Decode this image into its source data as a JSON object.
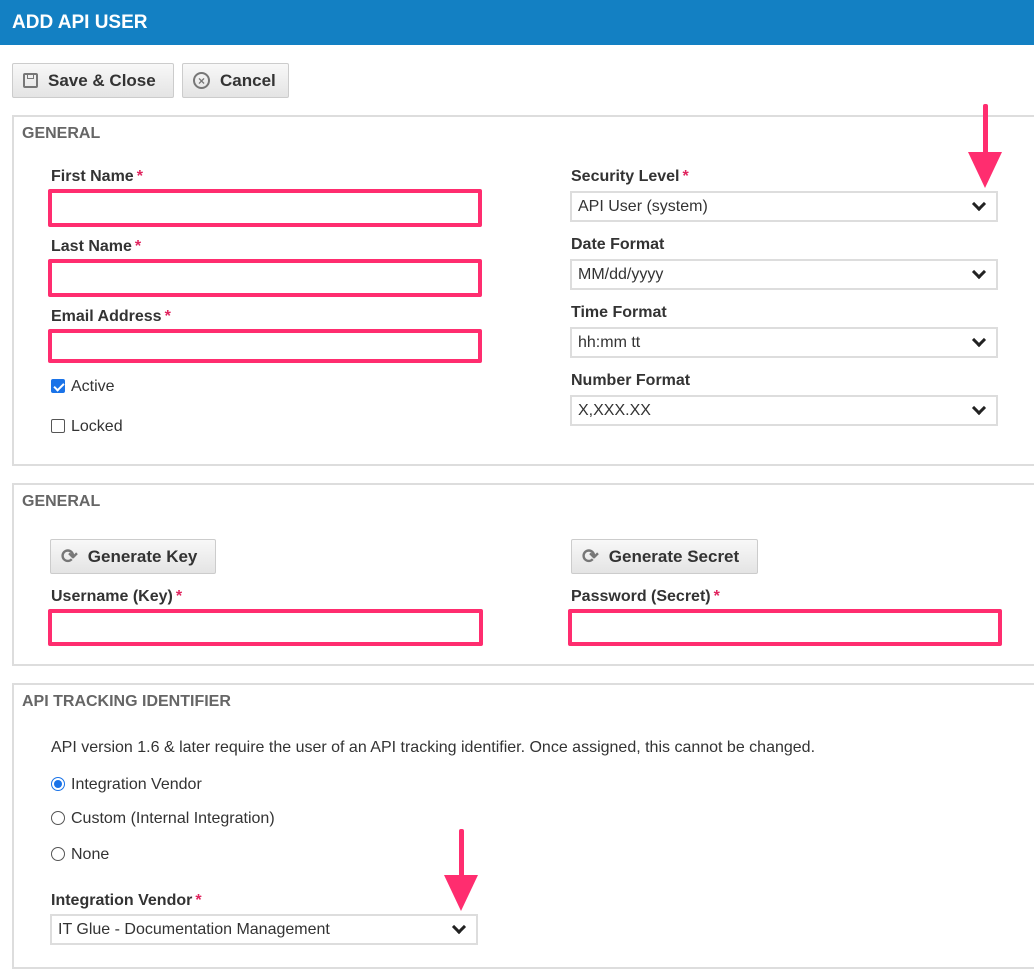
{
  "title": "ADD API USER",
  "toolbar": {
    "save_label": "Save & Close",
    "cancel_label": "Cancel"
  },
  "general": {
    "title": "GENERAL",
    "first_name": {
      "label": "First Name",
      "value": ""
    },
    "last_name": {
      "label": "Last Name",
      "value": ""
    },
    "email": {
      "label": "Email Address",
      "value": ""
    },
    "active": {
      "label": "Active",
      "checked": true
    },
    "locked": {
      "label": "Locked",
      "checked": false
    },
    "security_level": {
      "label": "Security Level",
      "value": "API User (system)"
    },
    "date_format": {
      "label": "Date Format",
      "value": "MM/dd/yyyy"
    },
    "time_format": {
      "label": "Time Format",
      "value": "hh:mm tt"
    },
    "number_format": {
      "label": "Number Format",
      "value": "X,XXX.XX"
    },
    "required_mark": "*"
  },
  "credentials": {
    "title": "GENERAL",
    "generate_key": "Generate Key",
    "generate_secret": "Generate Secret",
    "username": {
      "label": "Username (Key)",
      "value": ""
    },
    "password": {
      "label": "Password (Secret)",
      "value": ""
    }
  },
  "tracking": {
    "title": "API TRACKING IDENTIFIER",
    "description": "API version 1.6 & later require the user of an API tracking identifier. Once assigned, this cannot be changed.",
    "options": [
      {
        "label": "Integration Vendor",
        "selected": true
      },
      {
        "label": "Custom (Internal Integration)",
        "selected": false
      },
      {
        "label": "None",
        "selected": false
      }
    ],
    "vendor": {
      "label": "Integration Vendor",
      "value": "IT Glue - Documentation Management"
    }
  },
  "colors": {
    "header": "#1380c3",
    "highlight": "#ff2d6f",
    "required": "#e0245e"
  }
}
